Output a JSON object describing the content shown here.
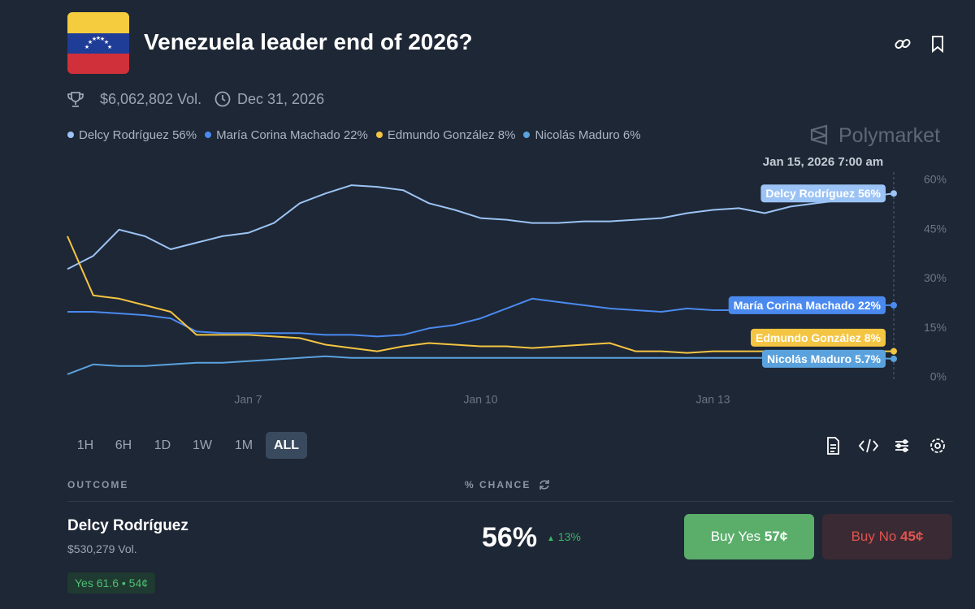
{
  "header": {
    "title": "Venezuela leader end of 2026?",
    "volume": "$6,062,802 Vol.",
    "end_date": "Dec 31, 2026"
  },
  "brand": "Polymarket",
  "chart_data": {
    "type": "line",
    "hover_label": "Jan 15, 2026 7:00 am",
    "categories": [
      null,
      null,
      null,
      null,
      null,
      null,
      null,
      "Jan 7",
      null,
      null,
      null,
      null,
      null,
      null,
      null,
      null,
      "Jan 10",
      null,
      null,
      null,
      null,
      null,
      null,
      null,
      null,
      "Jan 13",
      null,
      null,
      null,
      null,
      null,
      null,
      null
    ],
    "series": [
      {
        "name": "Delcy Rodríguez",
        "color": "#9cc3f5",
        "legend_label": "56%",
        "end_label": "56%",
        "values": [
          33,
          37,
          45,
          43,
          39,
          41,
          43,
          44,
          47,
          53,
          56,
          58.5,
          58,
          57,
          53,
          51,
          48.5,
          48,
          47,
          47,
          47.5,
          47.5,
          48,
          48.5,
          50,
          51,
          51.5,
          50,
          52,
          53,
          54,
          55,
          56
        ]
      },
      {
        "name": "María Corina Machado",
        "color": "#4a8af0",
        "legend_label": "22%",
        "end_label": "22%",
        "values": [
          20,
          20,
          19.5,
          19,
          18,
          14,
          13.5,
          13.5,
          13.5,
          13.5,
          13,
          13,
          12.5,
          13,
          15,
          16,
          18,
          21,
          24,
          23,
          22,
          21,
          20.5,
          20,
          21,
          20.5,
          20.5,
          21,
          21.5,
          22,
          22,
          22,
          22
        ]
      },
      {
        "name": "Edmundo González",
        "color": "#f4c542",
        "legend_label": "8%",
        "end_label": "8%",
        "values": [
          43,
          25,
          24,
          22,
          20,
          13,
          13,
          13,
          12.5,
          12,
          10,
          9,
          8,
          9.5,
          10.5,
          10,
          9.5,
          9.5,
          9,
          9.5,
          10,
          10.5,
          8,
          8,
          7.5,
          8,
          8,
          8,
          8,
          8,
          8,
          8,
          8
        ]
      },
      {
        "name": "Nicolás Maduro",
        "color": "#5aa2de",
        "legend_label": "6%",
        "end_label": "5.7%",
        "values": [
          1,
          4,
          3.5,
          3.5,
          4,
          4.5,
          4.5,
          5,
          5.5,
          6,
          6.5,
          6,
          6,
          6,
          6,
          6,
          6,
          6,
          6,
          6,
          6,
          6,
          6,
          6,
          6,
          6,
          6,
          6,
          6,
          6,
          6,
          6,
          5.7
        ]
      }
    ],
    "ylim": [
      0,
      60
    ],
    "yticks": [
      {
        "value": 0,
        "label": "0%"
      },
      {
        "value": 15,
        "label": "15%"
      },
      {
        "value": 30,
        "label": "30%"
      },
      {
        "value": 45,
        "label": "45%"
      },
      {
        "value": 60,
        "label": "60%"
      }
    ],
    "grid": false
  },
  "time_ranges": [
    "1H",
    "6H",
    "1D",
    "1W",
    "1M",
    "ALL"
  ],
  "active_range": "ALL",
  "table": {
    "headers": [
      "OUTCOME",
      "% CHANCE"
    ],
    "row": {
      "name": "Delcy Rodríguez",
      "volume": "$530,279 Vol.",
      "chance": "56%",
      "change": "13%",
      "buy_yes": "Buy Yes",
      "yes_price": "57¢",
      "buy_no": "Buy No",
      "no_price": "45¢",
      "badge": "Yes 61.6 • 54¢"
    }
  }
}
